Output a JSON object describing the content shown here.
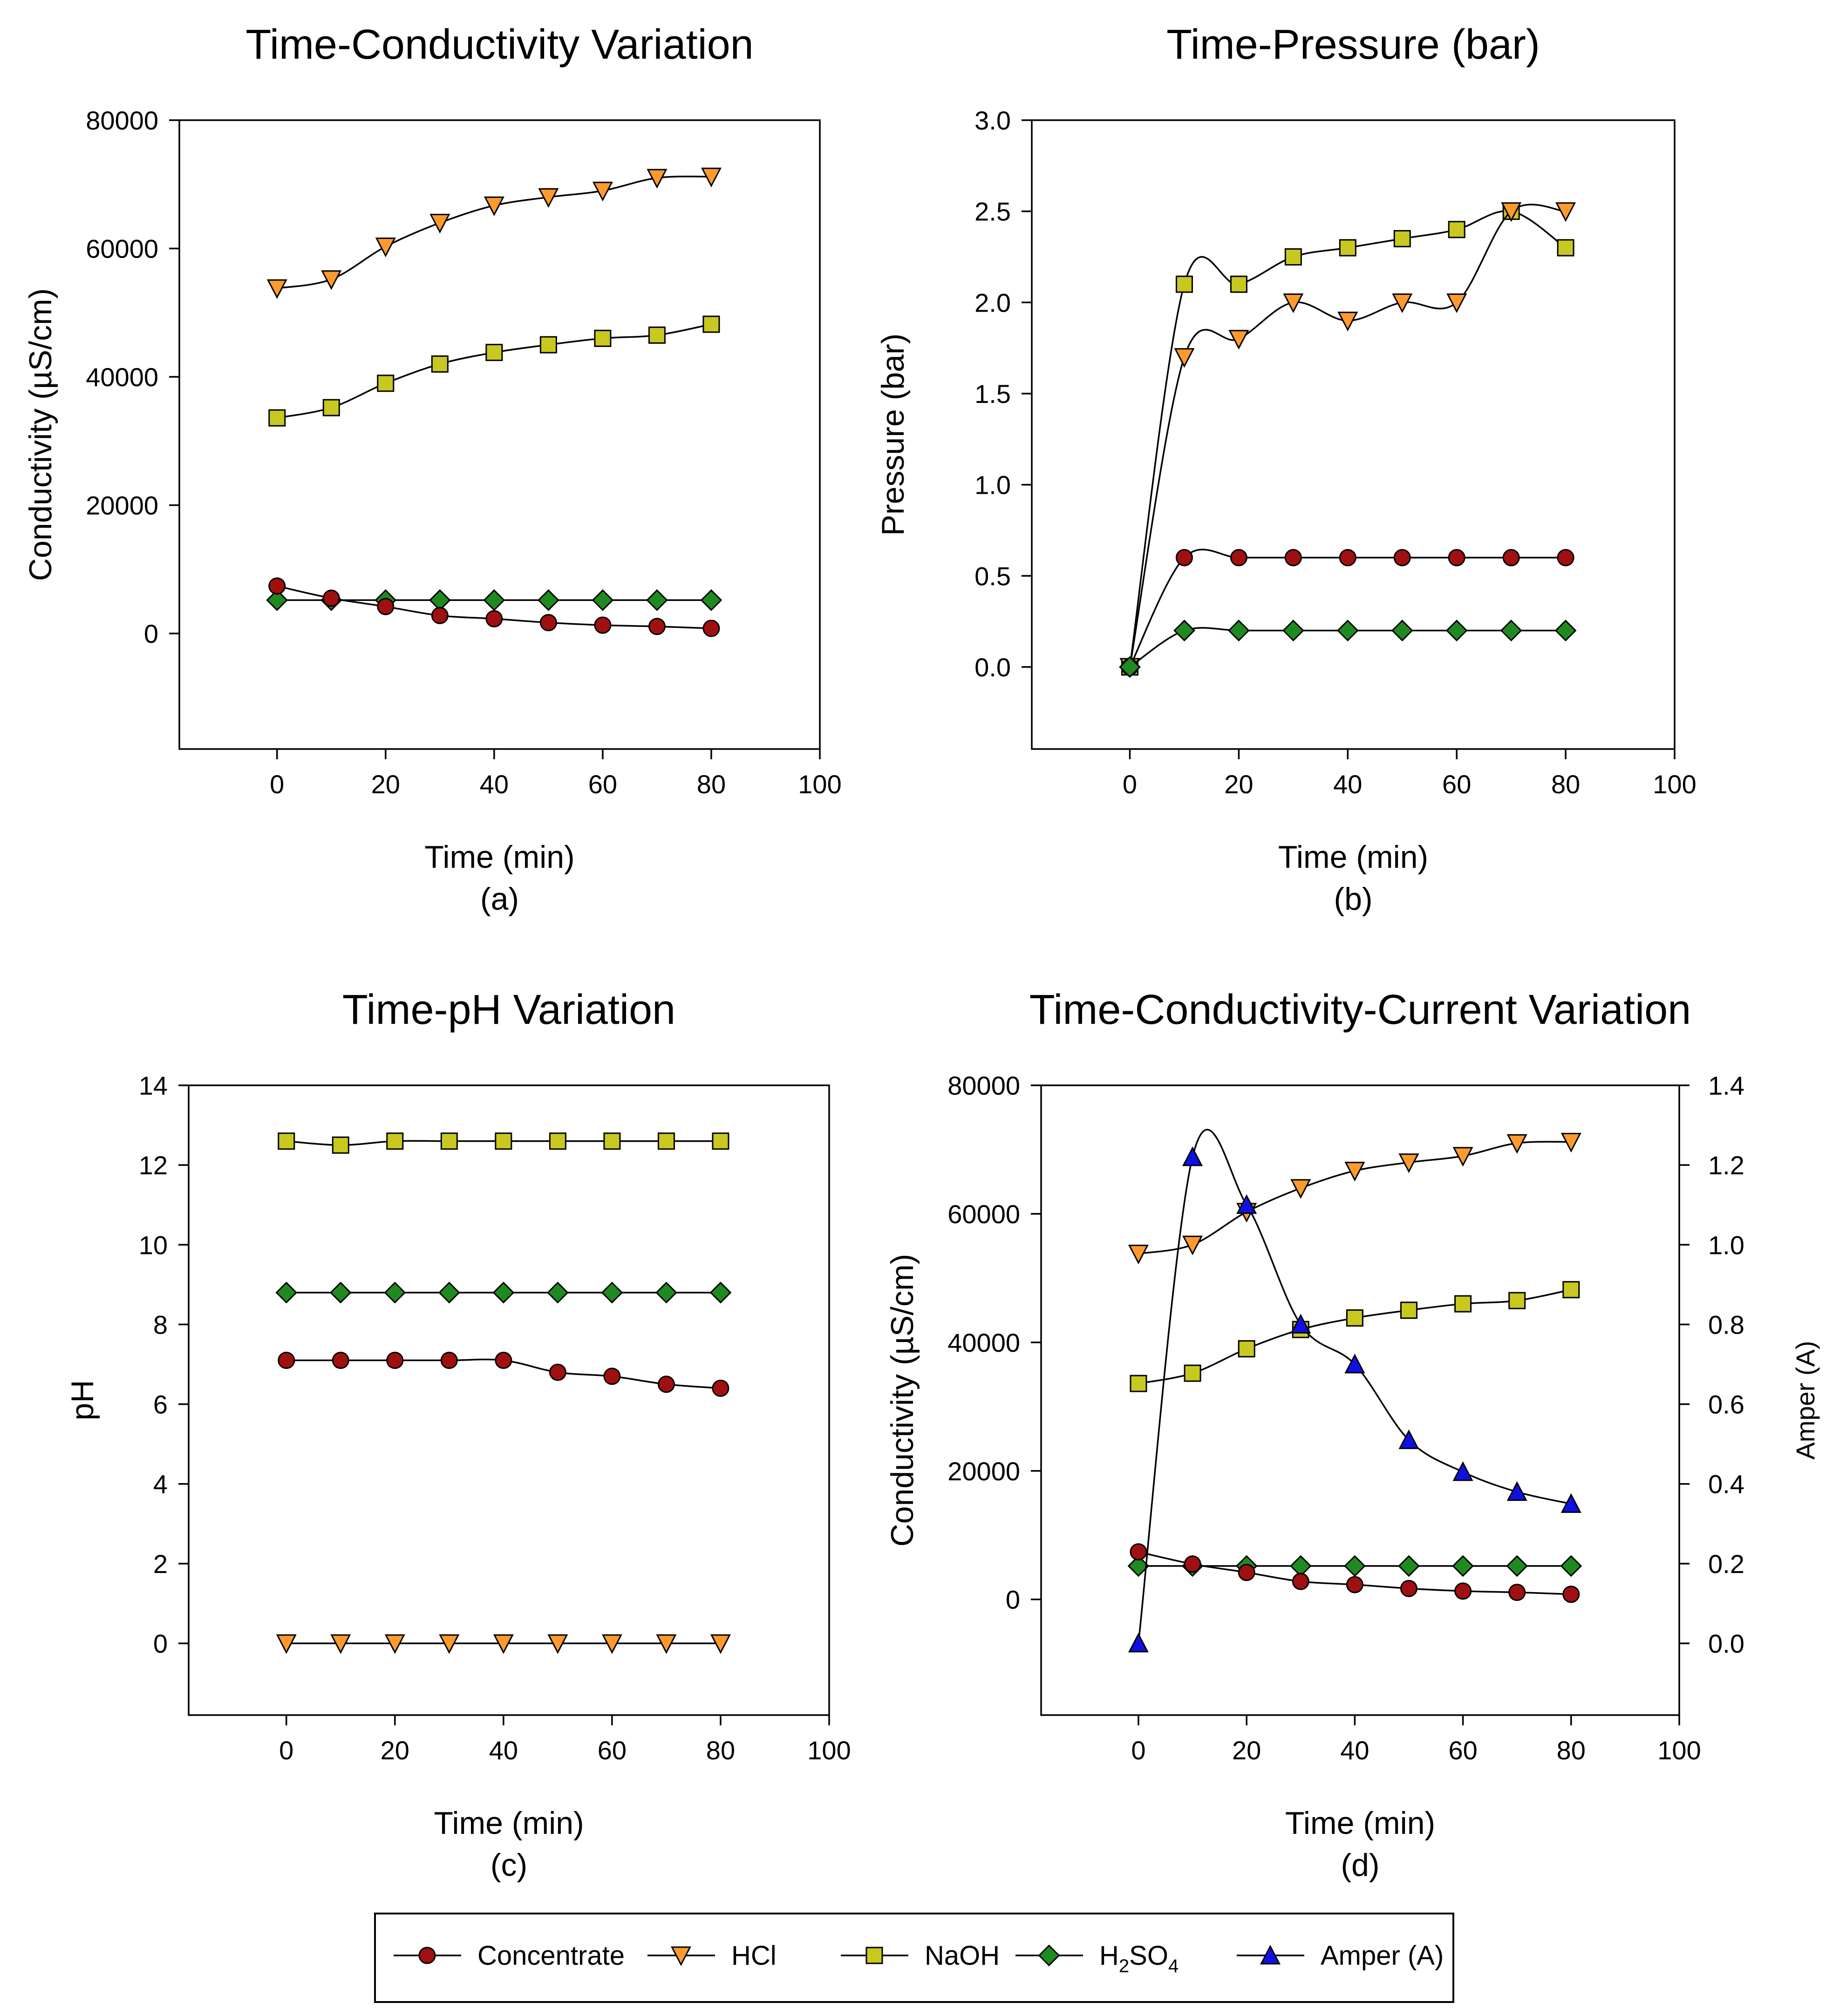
{
  "legend": {
    "items": [
      {
        "key": "concentrate",
        "label": "Concentrate",
        "marker": "circle",
        "color": "#a01010"
      },
      {
        "key": "hcl",
        "label": "HCl",
        "marker": "triangle-down",
        "color": "#ff9a2e"
      },
      {
        "key": "naoh",
        "label": "NaOH",
        "marker": "square",
        "color": "#c8c820"
      },
      {
        "key": "h2so4",
        "label": "H",
        "sub": "2",
        "label2": "SO",
        "sub2": "4",
        "marker": "diamond",
        "color": "#1f8a1f"
      },
      {
        "key": "amper",
        "label": "Amper (A)",
        "marker": "triangle-up",
        "color": "#1010e6"
      }
    ]
  },
  "chart_data": [
    {
      "id": "a",
      "type": "line",
      "title": "Time-Conductivity Variation",
      "xlabel": "Time (min)",
      "ylabel": "Conductivity (µS/cm)",
      "caption": "(a)",
      "xlim": [
        -18,
        100
      ],
      "xticks": [
        0,
        20,
        40,
        60,
        80,
        100
      ],
      "ylim": [
        -18000,
        80000
      ],
      "yticks": [
        0,
        20000,
        40000,
        60000,
        80000
      ],
      "x": [
        0,
        10,
        20,
        30,
        40,
        50,
        60,
        70,
        80
      ],
      "series": [
        {
          "key": "hcl",
          "name": "HCl",
          "values": [
            53800,
            55200,
            60300,
            64000,
            66700,
            68000,
            69000,
            71000,
            71200
          ]
        },
        {
          "key": "naoh",
          "name": "NaOH",
          "values": [
            33600,
            35200,
            39000,
            42000,
            43800,
            45000,
            46000,
            46500,
            48200
          ]
        },
        {
          "key": "h2so4",
          "name": "H2SO4",
          "values": [
            5200,
            5200,
            5200,
            5200,
            5200,
            5200,
            5200,
            5200,
            5200
          ]
        },
        {
          "key": "concentrate",
          "name": "Concentrate",
          "values": [
            7400,
            5500,
            4200,
            2800,
            2300,
            1700,
            1300,
            1100,
            800
          ]
        }
      ]
    },
    {
      "id": "b",
      "type": "line",
      "title": "Time-Pressure (bar)",
      "xlabel": "Time (min)",
      "ylabel": "Pressure (bar)",
      "caption": "(b)",
      "xlim": [
        -18,
        100
      ],
      "xticks": [
        0,
        20,
        40,
        60,
        80,
        100
      ],
      "ylim": [
        -0.45,
        3.0
      ],
      "yticks": [
        0.0,
        0.5,
        1.0,
        1.5,
        2.0,
        2.5,
        3.0
      ],
      "ytick_labels": [
        "0.0",
        "0.5",
        "1.0",
        "1.5",
        "2.0",
        "2.5",
        "3.0"
      ],
      "x": [
        0,
        10,
        20,
        30,
        40,
        50,
        60,
        70,
        80
      ],
      "series": [
        {
          "key": "naoh",
          "name": "NaOH",
          "values": [
            0,
            2.1,
            2.1,
            2.25,
            2.3,
            2.35,
            2.4,
            2.5,
            2.3
          ]
        },
        {
          "key": "hcl",
          "name": "HCl",
          "values": [
            0,
            1.7,
            1.8,
            2.0,
            1.9,
            2.0,
            2.0,
            2.5,
            2.5
          ]
        },
        {
          "key": "concentrate",
          "name": "Concentrate",
          "values": [
            0,
            0.6,
            0.6,
            0.6,
            0.6,
            0.6,
            0.6,
            0.6,
            0.6
          ]
        },
        {
          "key": "h2so4",
          "name": "H2SO4",
          "values": [
            0,
            0.2,
            0.2,
            0.2,
            0.2,
            0.2,
            0.2,
            0.2,
            0.2
          ]
        }
      ]
    },
    {
      "id": "c",
      "type": "line",
      "title": "Time-pH Variation",
      "xlabel": "Time (min)",
      "ylabel": "pH",
      "caption": "(c)",
      "xlim": [
        -18,
        100
      ],
      "xticks": [
        0,
        20,
        40,
        60,
        80,
        100
      ],
      "ylim": [
        -1.8,
        14
      ],
      "yticks": [
        0,
        2,
        4,
        6,
        8,
        10,
        12,
        14
      ],
      "x": [
        0,
        10,
        20,
        30,
        40,
        50,
        60,
        70,
        80
      ],
      "series": [
        {
          "key": "naoh",
          "name": "NaOH",
          "values": [
            12.6,
            12.5,
            12.6,
            12.6,
            12.6,
            12.6,
            12.6,
            12.6,
            12.6
          ]
        },
        {
          "key": "h2so4",
          "name": "H2SO4",
          "values": [
            8.8,
            8.8,
            8.8,
            8.8,
            8.8,
            8.8,
            8.8,
            8.8,
            8.8
          ]
        },
        {
          "key": "concentrate",
          "name": "Concentrate",
          "values": [
            7.1,
            7.1,
            7.1,
            7.1,
            7.1,
            6.8,
            6.7,
            6.5,
            6.4
          ]
        },
        {
          "key": "hcl",
          "name": "HCl",
          "values": [
            0,
            0,
            0,
            0,
            0,
            0,
            0,
            0,
            0
          ]
        }
      ]
    },
    {
      "id": "d",
      "type": "line",
      "title": "Time-Conductivity-Current Variation",
      "xlabel": "Time (min)",
      "ylabel": "Conductivity (µS/cm)",
      "y2label": "Amper (A)",
      "caption": "(d)",
      "xlim": [
        -18,
        100
      ],
      "xticks": [
        0,
        20,
        40,
        60,
        80,
        100
      ],
      "ylim": [
        -18000,
        80000
      ],
      "yticks": [
        0,
        20000,
        40000,
        60000,
        80000
      ],
      "y2lim": [
        -0.18,
        1.4
      ],
      "y2ticks": [
        0.0,
        0.2,
        0.4,
        0.6,
        0.8,
        1.0,
        1.2,
        1.4
      ],
      "y2tick_labels": [
        "0.0",
        "0.2",
        "0.4",
        "0.6",
        "0.8",
        "1.0",
        "1.2",
        "1.4"
      ],
      "x": [
        0,
        10,
        20,
        30,
        40,
        50,
        60,
        70,
        80
      ],
      "series": [
        {
          "key": "hcl",
          "name": "HCl",
          "axis": "y",
          "values": [
            53800,
            55200,
            60300,
            64000,
            66700,
            68000,
            69000,
            71000,
            71200
          ]
        },
        {
          "key": "naoh",
          "name": "NaOH",
          "axis": "y",
          "values": [
            33600,
            35200,
            39000,
            42000,
            43800,
            45000,
            46000,
            46500,
            48200
          ]
        },
        {
          "key": "h2so4",
          "name": "H2SO4",
          "axis": "y",
          "values": [
            5200,
            5200,
            5200,
            5200,
            5200,
            5200,
            5200,
            5200,
            5200
          ]
        },
        {
          "key": "concentrate",
          "name": "Concentrate",
          "axis": "y",
          "values": [
            7400,
            5500,
            4200,
            2800,
            2300,
            1700,
            1300,
            1100,
            800
          ]
        },
        {
          "key": "amper",
          "name": "Amper (A)",
          "axis": "y2",
          "values": [
            0.0,
            1.22,
            1.1,
            0.8,
            0.7,
            0.51,
            0.43,
            0.38,
            0.35
          ]
        }
      ]
    }
  ]
}
